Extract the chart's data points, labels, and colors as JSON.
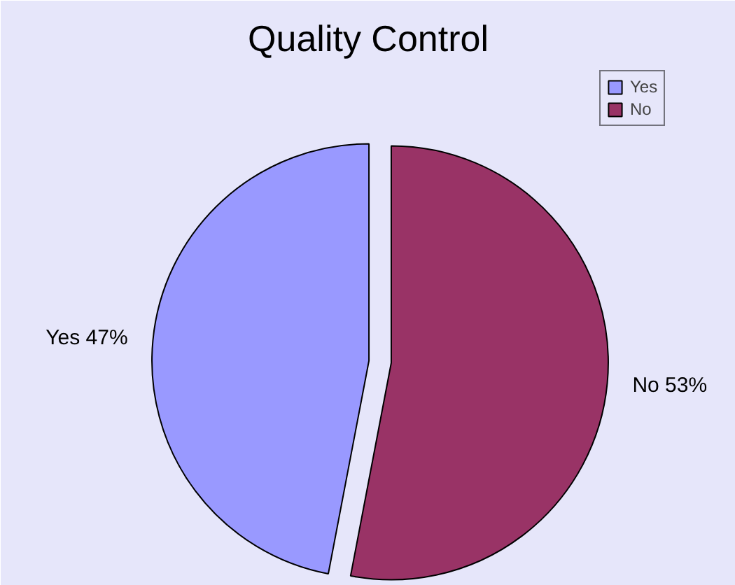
{
  "chart_data": {
    "type": "pie",
    "title": "Quality Control",
    "categories": [
      "Yes",
      "No"
    ],
    "values": [
      47,
      53
    ],
    "colors": [
      "#9999ff",
      "#993366"
    ],
    "value_labels": [
      "Yes 47%",
      "No 53%"
    ],
    "legend": "top right"
  }
}
